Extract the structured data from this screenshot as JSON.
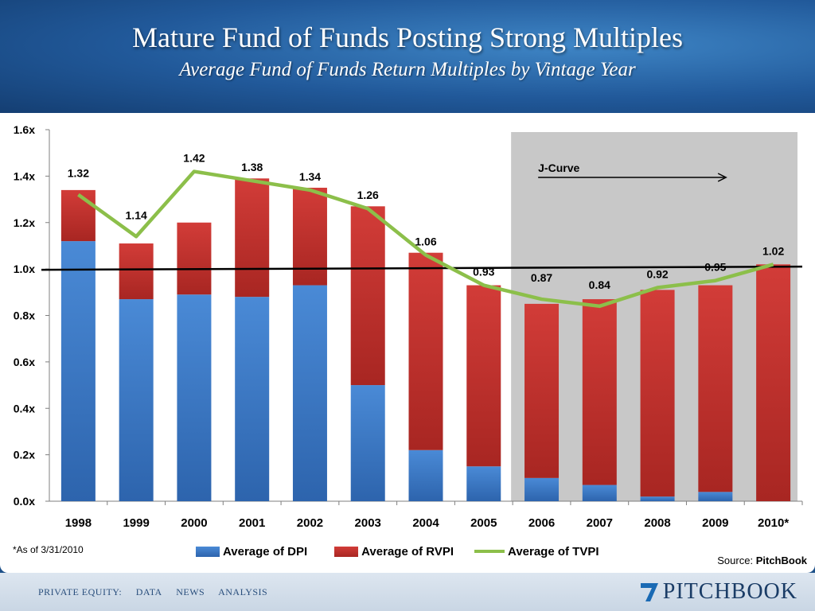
{
  "title": "Mature Fund of Funds Posting Strong Multiples",
  "subtitle": "Average Fund of Funds Return Multiples by Vintage Year",
  "footnote": "*As of 3/31/2010",
  "source_label": "Source:",
  "source_name": "PitchBook",
  "footer": {
    "nav": [
      "PRIVATE EQUITY:",
      "DATA",
      "NEWS",
      "ANALYSIS"
    ],
    "logo_text": "PITCHBOOK"
  },
  "colors": {
    "dpi": "#3a78c8",
    "rvpi": "#c8302e",
    "tvpi": "#8cbf4a",
    "jcurve_bg": "#c8c8c8"
  },
  "chart_data": {
    "type": "bar",
    "stacked": true,
    "categories": [
      "1998",
      "1999",
      "2000",
      "2001",
      "2002",
      "2003",
      "2004",
      "2005",
      "2006",
      "2007",
      "2008",
      "2009",
      "2010*"
    ],
    "series": [
      {
        "name": "Average of DPI",
        "type": "bar",
        "values": [
          1.12,
          0.87,
          0.89,
          0.88,
          0.93,
          0.5,
          0.22,
          0.15,
          0.1,
          0.07,
          0.02,
          0.04,
          0.0
        ]
      },
      {
        "name": "Average of RVPI",
        "type": "bar",
        "values": [
          0.22,
          0.24,
          0.31,
          0.51,
          0.42,
          0.77,
          0.85,
          0.78,
          0.75,
          0.8,
          0.89,
          0.89,
          1.02
        ]
      },
      {
        "name": "Average of TVPI",
        "type": "line",
        "values": [
          1.32,
          1.14,
          1.42,
          1.38,
          1.34,
          1.26,
          1.06,
          0.93,
          0.87,
          0.84,
          0.92,
          0.95,
          1.02
        ]
      }
    ],
    "tvpi_labels": [
      "1.32",
      "1.14",
      "1.42",
      "1.38",
      "1.34",
      "1.26",
      "1.06",
      "0.93",
      "0.87",
      "0.84",
      "0.92",
      "0.95",
      "1.02"
    ],
    "y_ticks": [
      "0.0x",
      "0.2x",
      "0.4x",
      "0.6x",
      "0.8x",
      "1.0x",
      "1.2x",
      "1.4x",
      "1.6x"
    ],
    "ylim": [
      0,
      1.6
    ],
    "reference_line": 1.0,
    "annotation": {
      "text": "J-Curve",
      "shaded_from": "2006",
      "shaded_to": "2010*"
    },
    "legend": "bottom"
  }
}
